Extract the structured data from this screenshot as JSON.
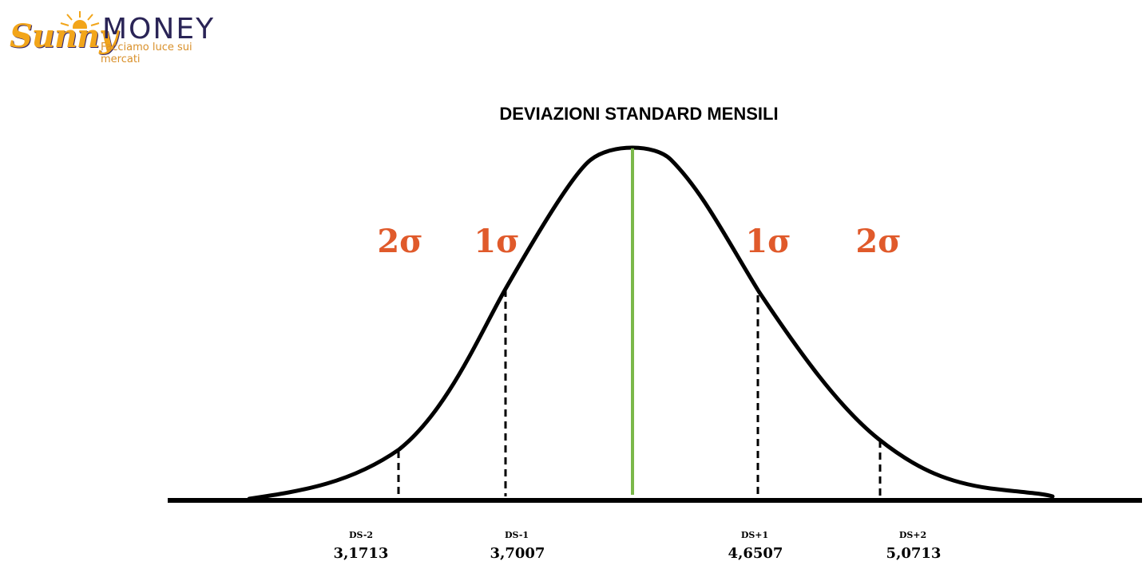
{
  "logo": {
    "word1": "Sunny",
    "word2": "MONEY",
    "tagline": "Facciamo luce sui mercati",
    "colors": {
      "primary": "#2a2456",
      "accent": "#f2a51a"
    }
  },
  "title": "DEVIAZIONI STANDARD MENSILI",
  "sigma_labels": {
    "left_2": "2σ",
    "left_1": "1σ",
    "right_1": "1σ",
    "right_2": "2σ"
  },
  "markers": [
    {
      "label": "DS-2",
      "value": "3,1713",
      "num": 3.1713
    },
    {
      "label": "DS-1",
      "value": "3,7007",
      "num": 3.7007
    },
    {
      "label": "DS+1",
      "value": "4,6507",
      "num": 4.6507
    },
    {
      "label": "DS+2",
      "value": "5,0713",
      "num": 5.0713
    }
  ],
  "colors": {
    "curve": "#000000",
    "mean_line": "#7bb84a",
    "sigma_text": "#e05a2b"
  }
}
